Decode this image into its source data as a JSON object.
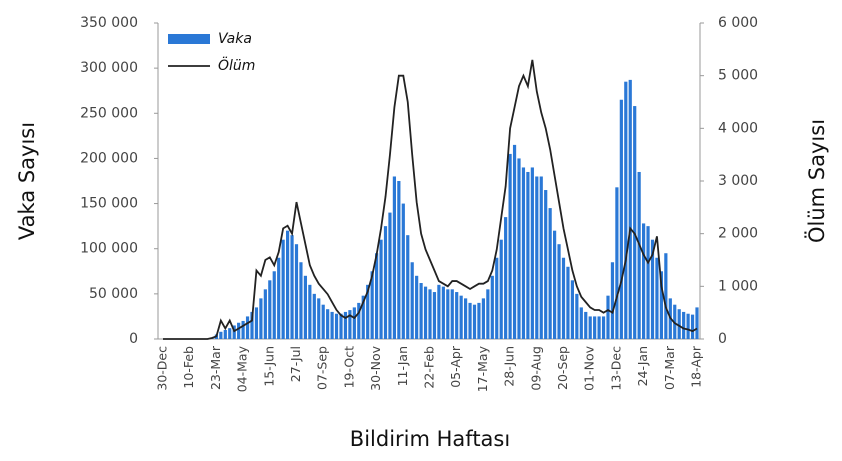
{
  "chart_data": {
    "type": "bar-line",
    "x_label": "Bildirim Haftası",
    "y_label": "Vaka Sayısı",
    "y2_label": "Ölüm Sayısı",
    "legend": "upper left",
    "categories": [
      "30-Dec",
      null,
      null,
      null,
      null,
      null,
      "10-Feb",
      null,
      null,
      null,
      null,
      null,
      "23-Mar",
      null,
      null,
      null,
      null,
      null,
      "04-May",
      null,
      null,
      null,
      null,
      null,
      "15-Jun",
      null,
      null,
      null,
      null,
      null,
      "27-Jul",
      null,
      null,
      null,
      null,
      null,
      "07-Sep",
      null,
      null,
      null,
      null,
      null,
      "19-Oct",
      null,
      null,
      null,
      null,
      null,
      "30-Nov",
      null,
      null,
      null,
      null,
      null,
      "11-Jan",
      null,
      null,
      null,
      null,
      null,
      "22-Feb",
      null,
      null,
      null,
      null,
      null,
      "05-Apr",
      null,
      null,
      null,
      null,
      null,
      "17-May",
      null,
      null,
      null,
      null,
      null,
      "28-Jun",
      null,
      null,
      null,
      null,
      null,
      "09-Aug",
      null,
      null,
      null,
      null,
      null,
      "20-Sep",
      null,
      null,
      null,
      null,
      null,
      "01-Nov",
      null,
      null,
      null,
      null,
      null,
      "13-Dec",
      null,
      null,
      null,
      null,
      null,
      "24-Jan",
      null,
      null,
      null,
      null,
      null,
      "07-Mar",
      null,
      null,
      null,
      null,
      null,
      "18-Apr"
    ],
    "series": [
      {
        "name": "Vaka",
        "type": "bar",
        "color": "#2a78d6",
        "values": [
          0,
          0,
          0,
          0,
          0,
          0,
          0,
          0,
          0,
          0,
          0,
          1000,
          5000,
          8000,
          10000,
          12000,
          15000,
          18000,
          20000,
          25000,
          30000,
          35000,
          45000,
          55000,
          65000,
          75000,
          90000,
          110000,
          120000,
          115000,
          105000,
          85000,
          70000,
          60000,
          50000,
          45000,
          38000,
          33000,
          30000,
          28000,
          28000,
          30000,
          32000,
          35000,
          40000,
          48000,
          60000,
          75000,
          95000,
          110000,
          125000,
          140000,
          180000,
          175000,
          150000,
          115000,
          85000,
          70000,
          62000,
          58000,
          55000,
          52000,
          60000,
          58000,
          55000,
          55000,
          52000,
          48000,
          45000,
          40000,
          38000,
          40000,
          45000,
          55000,
          70000,
          90000,
          110000,
          135000,
          205000,
          215000,
          200000,
          190000,
          185000,
          190000,
          180000,
          180000,
          165000,
          145000,
          120000,
          105000,
          90000,
          80000,
          65000,
          50000,
          35000,
          30000,
          25000,
          25000,
          25000,
          25000,
          48000,
          85000,
          168000,
          265000,
          285000,
          287000,
          258000,
          185000,
          128000,
          125000,
          110000,
          90000,
          75000,
          95000,
          45000,
          38000,
          33000,
          30000,
          28000,
          27000,
          35000
        ]
      },
      {
        "name": "Ölüm",
        "type": "line",
        "axis": "y2",
        "color": "#222222",
        "values": [
          0,
          0,
          0,
          0,
          0,
          0,
          0,
          0,
          0,
          0,
          0,
          20,
          50,
          350,
          200,
          350,
          150,
          200,
          250,
          300,
          350,
          1300,
          1200,
          1500,
          1550,
          1400,
          1650,
          2100,
          2150,
          2000,
          2600,
          2200,
          1800,
          1400,
          1200,
          1050,
          950,
          850,
          700,
          550,
          450,
          400,
          450,
          400,
          500,
          700,
          900,
          1200,
          1600,
          2100,
          2700,
          3500,
          4400,
          5000,
          5000,
          4500,
          3500,
          2600,
          2000,
          1700,
          1500,
          1300,
          1100,
          1050,
          1000,
          1100,
          1100,
          1050,
          1000,
          950,
          1000,
          1050,
          1050,
          1100,
          1300,
          1700,
          2300,
          2900,
          4000,
          4400,
          4800,
          5000,
          4800,
          5300,
          4700,
          4300,
          4000,
          3600,
          3100,
          2600,
          2100,
          1700,
          1300,
          1000,
          800,
          700,
          600,
          550,
          550,
          500,
          550,
          500,
          800,
          1100,
          1500,
          2100,
          2000,
          1800,
          1600,
          1450,
          1600,
          1950,
          1000,
          600,
          400,
          300,
          250,
          200,
          180,
          150,
          200
        ]
      }
    ],
    "ylim": [
      0,
      350000
    ],
    "yticks": [
      0,
      {
        "value": 50000,
        "label": "50 000"
      },
      {
        "value": 100000,
        "label": "100 000"
      },
      {
        "value": 150000,
        "label": "150 000"
      },
      {
        "value": 200000,
        "label": "200 000"
      },
      {
        "value": 250000,
        "label": "250 000"
      },
      {
        "value": 300000,
        "label": "300 000"
      },
      {
        "value": 350000,
        "label": "350 000"
      }
    ],
    "y2lim": [
      0,
      6000
    ],
    "y2ticks": [
      0,
      {
        "value": 1000,
        "label": "1 000"
      },
      {
        "value": 2000,
        "label": "2 000"
      },
      {
        "value": 3000,
        "label": "3 000"
      },
      {
        "value": 4000,
        "label": "4 000"
      },
      {
        "value": 5000,
        "label": "5 000"
      },
      {
        "value": 6000,
        "label": "6 000"
      }
    ]
  }
}
